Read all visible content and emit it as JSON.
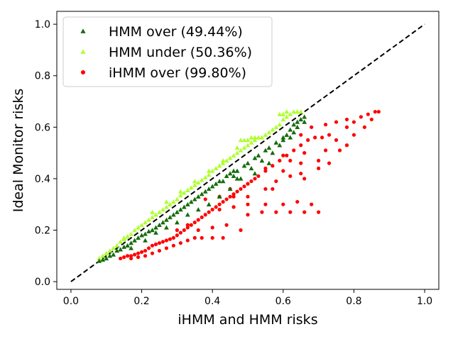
{
  "chart_data": {
    "type": "scatter",
    "title": "",
    "xlabel": "iHMM and HMM risks",
    "ylabel": "Ideal Monitor risks",
    "xlim": [
      -0.04,
      1.04
    ],
    "ylim": [
      -0.03,
      1.05
    ],
    "xticks": [
      "0.0",
      "0.2",
      "0.4",
      "0.6",
      "0.8",
      "1.0"
    ],
    "xtick_values": [
      0.0,
      0.2,
      0.4,
      0.6,
      0.8,
      1.0
    ],
    "yticks": [
      "0.0",
      "0.2",
      "0.4",
      "0.6",
      "0.8",
      "1.0"
    ],
    "ytick_values": [
      0.0,
      0.2,
      0.4,
      0.6,
      0.8,
      1.0
    ],
    "grid": false,
    "legend_position": "top-left",
    "reference_line": {
      "style": "dashed",
      "color": "#000000",
      "from": [
        0,
        0
      ],
      "to": [
        1,
        1
      ]
    },
    "series": [
      {
        "name": "HMM over (49.44%)",
        "marker": "triangle",
        "color": "#146c0c",
        "points": [
          [
            0.08,
            0.08
          ],
          [
            0.09,
            0.085
          ],
          [
            0.1,
            0.09
          ],
          [
            0.11,
            0.1
          ],
          [
            0.12,
            0.105
          ],
          [
            0.13,
            0.12
          ],
          [
            0.14,
            0.125
          ],
          [
            0.15,
            0.135
          ],
          [
            0.16,
            0.14
          ],
          [
            0.17,
            0.15
          ],
          [
            0.18,
            0.16
          ],
          [
            0.19,
            0.17
          ],
          [
            0.2,
            0.18
          ],
          [
            0.21,
            0.185
          ],
          [
            0.22,
            0.195
          ],
          [
            0.23,
            0.2
          ],
          [
            0.24,
            0.21
          ],
          [
            0.25,
            0.22
          ],
          [
            0.26,
            0.23
          ],
          [
            0.27,
            0.24
          ],
          [
            0.28,
            0.25
          ],
          [
            0.29,
            0.26
          ],
          [
            0.3,
            0.27
          ],
          [
            0.31,
            0.28
          ],
          [
            0.32,
            0.29
          ],
          [
            0.33,
            0.3
          ],
          [
            0.34,
            0.31
          ],
          [
            0.35,
            0.32
          ],
          [
            0.36,
            0.33
          ],
          [
            0.37,
            0.34
          ],
          [
            0.38,
            0.35
          ],
          [
            0.39,
            0.36
          ],
          [
            0.4,
            0.37
          ],
          [
            0.41,
            0.38
          ],
          [
            0.42,
            0.39
          ],
          [
            0.43,
            0.39
          ],
          [
            0.44,
            0.41
          ],
          [
            0.45,
            0.42
          ],
          [
            0.46,
            0.43
          ],
          [
            0.47,
            0.43
          ],
          [
            0.49,
            0.45
          ],
          [
            0.5,
            0.46
          ],
          [
            0.52,
            0.48
          ],
          [
            0.53,
            0.49
          ],
          [
            0.55,
            0.51
          ],
          [
            0.56,
            0.52
          ],
          [
            0.58,
            0.54
          ],
          [
            0.6,
            0.56
          ],
          [
            0.61,
            0.57
          ],
          [
            0.62,
            0.59
          ],
          [
            0.63,
            0.61
          ],
          [
            0.64,
            0.62
          ],
          [
            0.65,
            0.63
          ],
          [
            0.66,
            0.64
          ],
          [
            0.17,
            0.13
          ],
          [
            0.21,
            0.16
          ],
          [
            0.24,
            0.19
          ],
          [
            0.27,
            0.21
          ],
          [
            0.3,
            0.23
          ],
          [
            0.33,
            0.26
          ],
          [
            0.36,
            0.28
          ],
          [
            0.39,
            0.3
          ],
          [
            0.42,
            0.33
          ],
          [
            0.45,
            0.36
          ],
          [
            0.48,
            0.4
          ],
          [
            0.51,
            0.44
          ],
          [
            0.54,
            0.47
          ],
          [
            0.57,
            0.5
          ],
          [
            0.6,
            0.55
          ],
          [
            0.63,
            0.58
          ],
          [
            0.47,
            0.4
          ],
          [
            0.52,
            0.42
          ],
          [
            0.56,
            0.46
          ],
          [
            0.59,
            0.53
          ],
          [
            0.62,
            0.56
          ],
          [
            0.64,
            0.6
          ],
          [
            0.66,
            0.62
          ],
          [
            0.46,
            0.41
          ]
        ]
      },
      {
        "name": "HMM under (50.36%)",
        "marker": "triangle",
        "color": "#adff2f",
        "points": [
          [
            0.08,
            0.09
          ],
          [
            0.09,
            0.1
          ],
          [
            0.1,
            0.11
          ],
          [
            0.11,
            0.12
          ],
          [
            0.12,
            0.13
          ],
          [
            0.13,
            0.14
          ],
          [
            0.14,
            0.155
          ],
          [
            0.15,
            0.165
          ],
          [
            0.16,
            0.175
          ],
          [
            0.17,
            0.185
          ],
          [
            0.18,
            0.2
          ],
          [
            0.19,
            0.21
          ],
          [
            0.2,
            0.22
          ],
          [
            0.21,
            0.23
          ],
          [
            0.22,
            0.24
          ],
          [
            0.23,
            0.25
          ],
          [
            0.24,
            0.26
          ],
          [
            0.25,
            0.27
          ],
          [
            0.26,
            0.28
          ],
          [
            0.27,
            0.29
          ],
          [
            0.28,
            0.3
          ],
          [
            0.29,
            0.31
          ],
          [
            0.3,
            0.32
          ],
          [
            0.31,
            0.335
          ],
          [
            0.32,
            0.345
          ],
          [
            0.33,
            0.355
          ],
          [
            0.34,
            0.365
          ],
          [
            0.35,
            0.375
          ],
          [
            0.36,
            0.385
          ],
          [
            0.37,
            0.395
          ],
          [
            0.38,
            0.405
          ],
          [
            0.39,
            0.415
          ],
          [
            0.4,
            0.43
          ],
          [
            0.41,
            0.44
          ],
          [
            0.42,
            0.45
          ],
          [
            0.43,
            0.46
          ],
          [
            0.44,
            0.47
          ],
          [
            0.45,
            0.48
          ],
          [
            0.46,
            0.49
          ],
          [
            0.47,
            0.5
          ],
          [
            0.48,
            0.51
          ],
          [
            0.49,
            0.52
          ],
          [
            0.5,
            0.53
          ],
          [
            0.51,
            0.54
          ],
          [
            0.52,
            0.55
          ],
          [
            0.53,
            0.56
          ],
          [
            0.54,
            0.56
          ],
          [
            0.55,
            0.57
          ],
          [
            0.56,
            0.58
          ],
          [
            0.57,
            0.59
          ],
          [
            0.58,
            0.6
          ],
          [
            0.59,
            0.61
          ],
          [
            0.6,
            0.63
          ],
          [
            0.61,
            0.64
          ],
          [
            0.62,
            0.65
          ],
          [
            0.63,
            0.66
          ],
          [
            0.64,
            0.66
          ],
          [
            0.65,
            0.66
          ],
          [
            0.5,
            0.55
          ],
          [
            0.51,
            0.56
          ],
          [
            0.52,
            0.56
          ],
          [
            0.53,
            0.56
          ],
          [
            0.48,
            0.55
          ],
          [
            0.49,
            0.55
          ],
          [
            0.59,
            0.65
          ],
          [
            0.6,
            0.65
          ],
          [
            0.61,
            0.66
          ],
          [
            0.15,
            0.17
          ],
          [
            0.19,
            0.21
          ],
          [
            0.23,
            0.27
          ],
          [
            0.27,
            0.31
          ],
          [
            0.31,
            0.35
          ],
          [
            0.35,
            0.39
          ],
          [
            0.39,
            0.43
          ],
          [
            0.43,
            0.47
          ],
          [
            0.47,
            0.52
          ]
        ]
      },
      {
        "name": "iHMM over (99.80%)",
        "marker": "circle",
        "color": "#ff0000",
        "points": [
          [
            0.14,
            0.09
          ],
          [
            0.15,
            0.095
          ],
          [
            0.16,
            0.1
          ],
          [
            0.17,
            0.1
          ],
          [
            0.18,
            0.105
          ],
          [
            0.19,
            0.11
          ],
          [
            0.2,
            0.115
          ],
          [
            0.21,
            0.12
          ],
          [
            0.22,
            0.13
          ],
          [
            0.23,
            0.14
          ],
          [
            0.24,
            0.145
          ],
          [
            0.25,
            0.15
          ],
          [
            0.26,
            0.155
          ],
          [
            0.27,
            0.16
          ],
          [
            0.28,
            0.165
          ],
          [
            0.29,
            0.17
          ],
          [
            0.3,
            0.18
          ],
          [
            0.31,
            0.19
          ],
          [
            0.32,
            0.2
          ],
          [
            0.33,
            0.21
          ],
          [
            0.34,
            0.22
          ],
          [
            0.35,
            0.23
          ],
          [
            0.36,
            0.24
          ],
          [
            0.37,
            0.25
          ],
          [
            0.38,
            0.26
          ],
          [
            0.39,
            0.27
          ],
          [
            0.4,
            0.28
          ],
          [
            0.41,
            0.29
          ],
          [
            0.42,
            0.3
          ],
          [
            0.43,
            0.31
          ],
          [
            0.44,
            0.32
          ],
          [
            0.45,
            0.33
          ],
          [
            0.46,
            0.34
          ],
          [
            0.47,
            0.35
          ],
          [
            0.48,
            0.36
          ],
          [
            0.49,
            0.37
          ],
          [
            0.5,
            0.38
          ],
          [
            0.51,
            0.39
          ],
          [
            0.52,
            0.4
          ],
          [
            0.53,
            0.41
          ],
          [
            0.55,
            0.43
          ],
          [
            0.57,
            0.45
          ],
          [
            0.59,
            0.47
          ],
          [
            0.61,
            0.49
          ],
          [
            0.63,
            0.51
          ],
          [
            0.65,
            0.53
          ],
          [
            0.67,
            0.55
          ],
          [
            0.69,
            0.56
          ],
          [
            0.71,
            0.56
          ],
          [
            0.73,
            0.57
          ],
          [
            0.75,
            0.55
          ],
          [
            0.78,
            0.6
          ],
          [
            0.8,
            0.62
          ],
          [
            0.82,
            0.64
          ],
          [
            0.84,
            0.65
          ],
          [
            0.86,
            0.66
          ],
          [
            0.17,
            0.09
          ],
          [
            0.19,
            0.095
          ],
          [
            0.21,
            0.1
          ],
          [
            0.23,
            0.11
          ],
          [
            0.25,
            0.12
          ],
          [
            0.27,
            0.13
          ],
          [
            0.29,
            0.14
          ],
          [
            0.31,
            0.15
          ],
          [
            0.33,
            0.16
          ],
          [
            0.35,
            0.17
          ],
          [
            0.37,
            0.17
          ],
          [
            0.4,
            0.17
          ],
          [
            0.43,
            0.17
          ],
          [
            0.3,
            0.2
          ],
          [
            0.33,
            0.22
          ],
          [
            0.36,
            0.2
          ],
          [
            0.4,
            0.21
          ],
          [
            0.44,
            0.22
          ],
          [
            0.48,
            0.2
          ],
          [
            0.5,
            0.26
          ],
          [
            0.54,
            0.27
          ],
          [
            0.58,
            0.27
          ],
          [
            0.62,
            0.27
          ],
          [
            0.66,
            0.27
          ],
          [
            0.7,
            0.27
          ],
          [
            0.42,
            0.28
          ],
          [
            0.46,
            0.29
          ],
          [
            0.5,
            0.3
          ],
          [
            0.55,
            0.3
          ],
          [
            0.6,
            0.3
          ],
          [
            0.64,
            0.31
          ],
          [
            0.68,
            0.3
          ],
          [
            0.38,
            0.32
          ],
          [
            0.42,
            0.33
          ],
          [
            0.46,
            0.33
          ],
          [
            0.5,
            0.33
          ],
          [
            0.45,
            0.36
          ],
          [
            0.5,
            0.38
          ],
          [
            0.55,
            0.36
          ],
          [
            0.58,
            0.39
          ],
          [
            0.57,
            0.36
          ],
          [
            0.62,
            0.41
          ],
          [
            0.66,
            0.4
          ],
          [
            0.55,
            0.44
          ],
          [
            0.6,
            0.43
          ],
          [
            0.65,
            0.42
          ],
          [
            0.7,
            0.44
          ],
          [
            0.65,
            0.46
          ],
          [
            0.7,
            0.47
          ],
          [
            0.73,
            0.46
          ],
          [
            0.62,
            0.47
          ],
          [
            0.6,
            0.49
          ],
          [
            0.66,
            0.5
          ],
          [
            0.72,
            0.51
          ],
          [
            0.76,
            0.51
          ],
          [
            0.78,
            0.53
          ],
          [
            0.8,
            0.57
          ],
          [
            0.83,
            0.6
          ],
          [
            0.85,
            0.63
          ],
          [
            0.87,
            0.66
          ],
          [
            0.65,
            0.57
          ],
          [
            0.68,
            0.6
          ],
          [
            0.72,
            0.61
          ],
          [
            0.75,
            0.62
          ],
          [
            0.78,
            0.63
          ]
        ]
      }
    ]
  }
}
